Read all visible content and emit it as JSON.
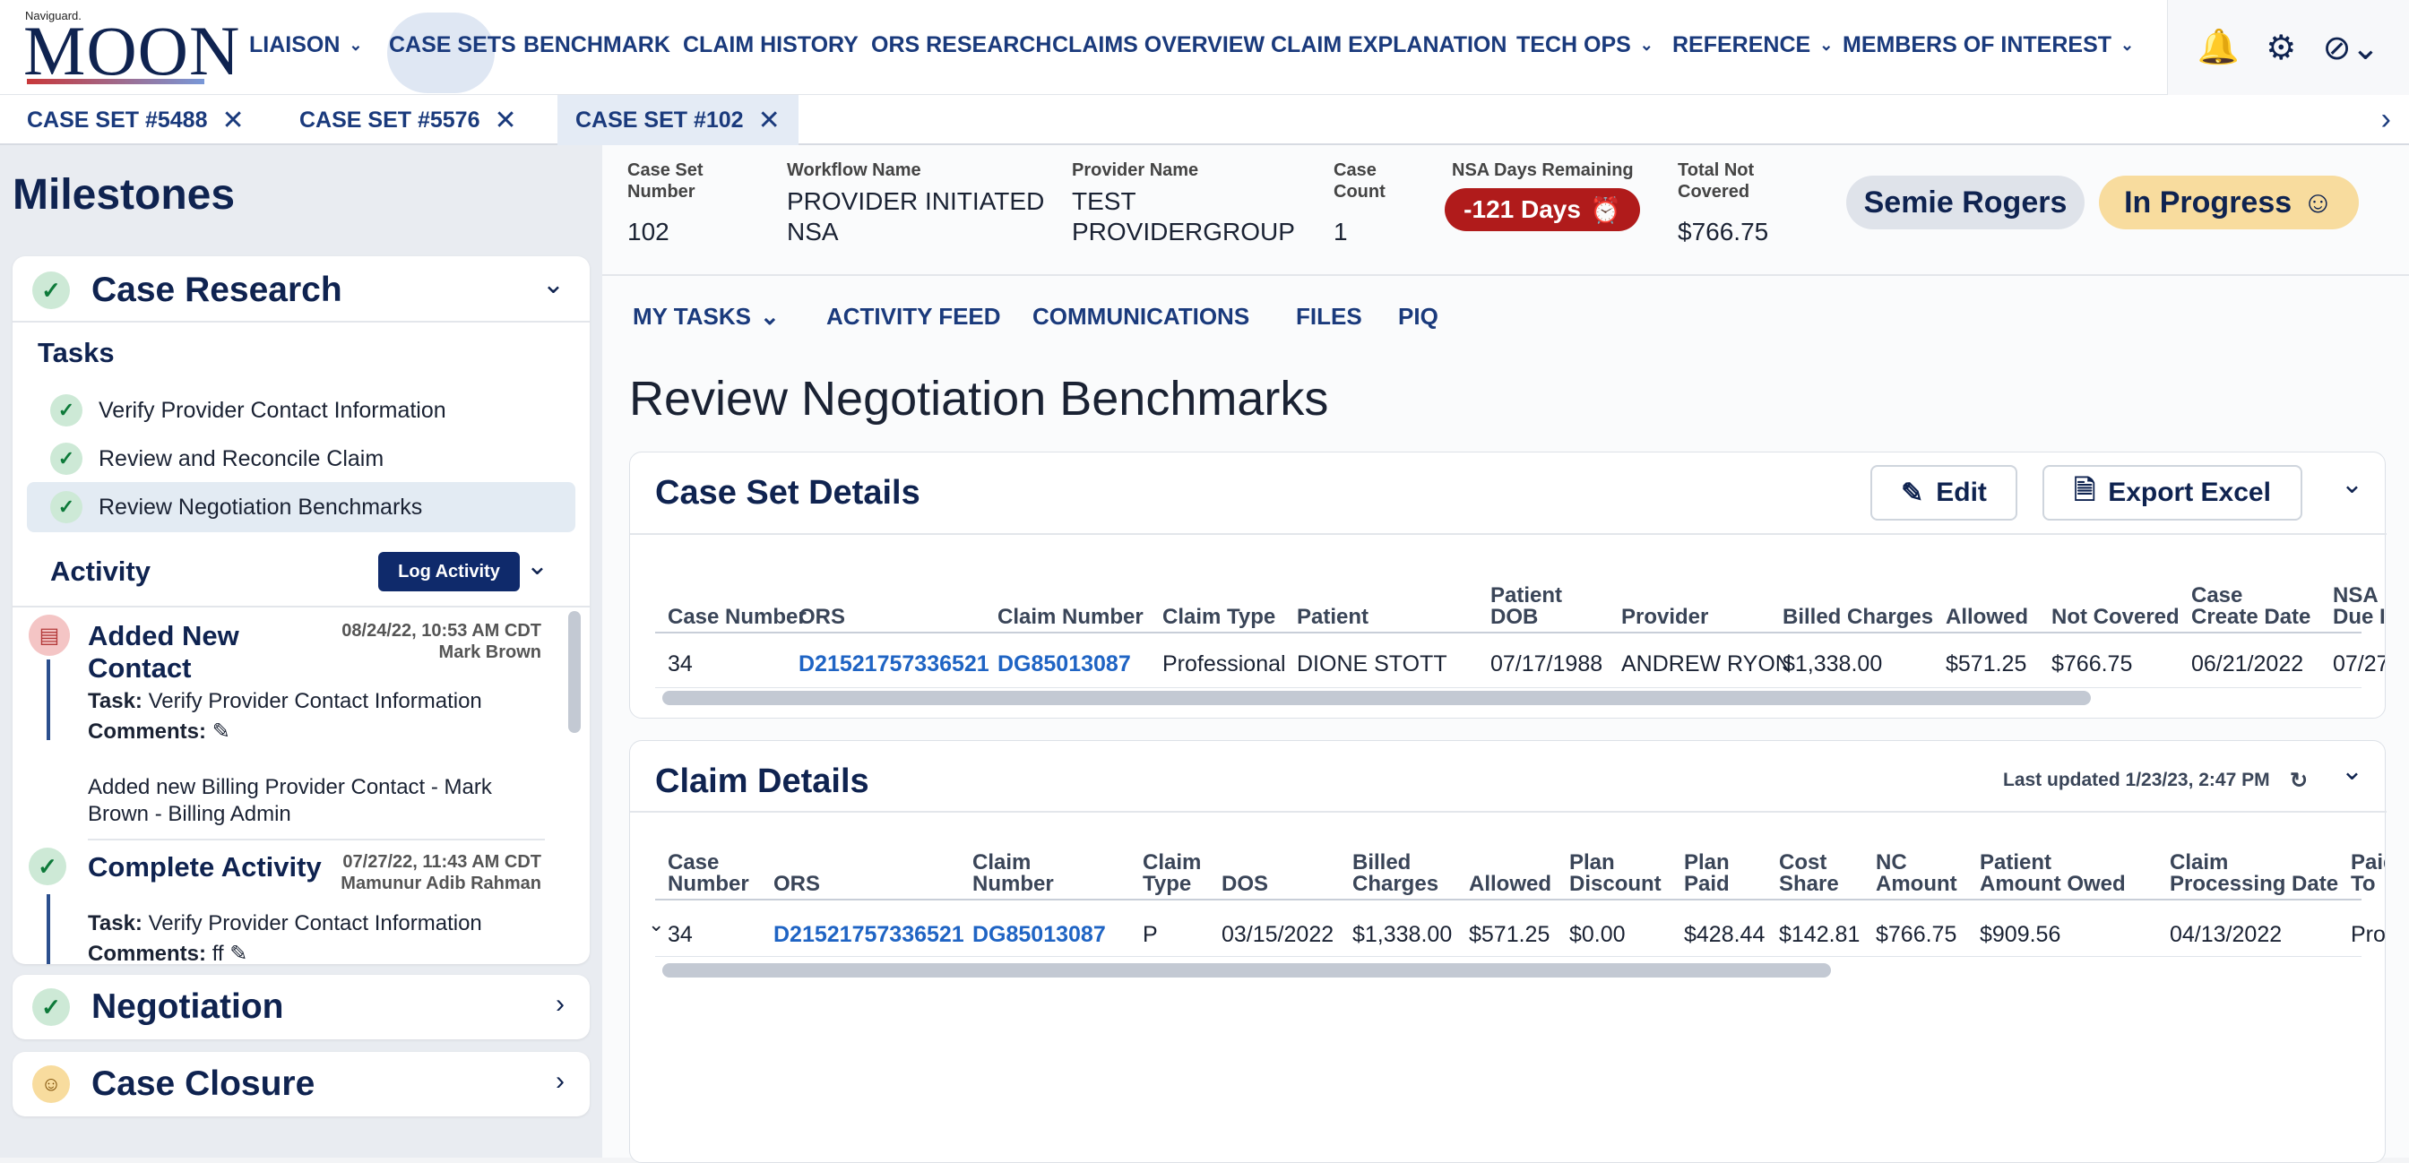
{
  "brand": {
    "small": "Naviguard.",
    "big": "MOON"
  },
  "nav": [
    {
      "label": "LIAISON",
      "chevron": true
    },
    {
      "label": "CASE SETS",
      "chevron": false,
      "active": true
    },
    {
      "label": "BENCHMARK",
      "chevron": false
    },
    {
      "label": "CLAIM HISTORY",
      "chevron": false
    },
    {
      "label": "ORS RESEARCH",
      "chevron": false
    },
    {
      "label": "CLAIMS OVERVIEW",
      "chevron": false
    },
    {
      "label": "CLAIM EXPLANATION",
      "chevron": false
    },
    {
      "label": "TECH OPS",
      "chevron": true
    },
    {
      "label": "REFERENCE",
      "chevron": true
    },
    {
      "label": "MEMBERS OF INTEREST",
      "chevron": true
    }
  ],
  "top_icons": [
    "bell-icon",
    "bug-icon",
    "user-blocked-icon"
  ],
  "doc_tabs": [
    {
      "label": "CASE SET #5488"
    },
    {
      "label": "CASE SET #5576"
    },
    {
      "label": "CASE SET #102",
      "active": true
    }
  ],
  "milestones": {
    "title": "Milestones",
    "case_research": {
      "title": "Case Research",
      "tasks_label": "Tasks",
      "tasks": [
        "Verify Provider Contact Information",
        "Review and Reconcile Claim",
        "Review Negotiation Benchmarks"
      ],
      "activity_label": "Activity",
      "log_button": "Log Activity",
      "activities": [
        {
          "title_1": "Added New",
          "title_2": "Contact",
          "date": "08/24/22, 10:53 AM CDT",
          "author": "Mark Brown",
          "task_label": "Task:",
          "task": "Verify Provider Contact Information",
          "comments_label": "Comments:",
          "body_1": "Added new Billing Provider Contact - Mark",
          "body_2": "Brown - Billing Admin"
        },
        {
          "title_1": "Complete Activity",
          "date": "07/27/22, 11:43 AM CDT",
          "author": "Mamunur Adib Rahman",
          "task_label": "Task:",
          "task": "Verify Provider Contact Information",
          "comments_label": "Comments:",
          "comment": "ff"
        }
      ]
    },
    "negotiation": {
      "title": "Negotiation"
    },
    "case_closure": {
      "title": "Case Closure"
    }
  },
  "case_header": {
    "case_set_number_label_1": "Case Set",
    "case_set_number_label_2": "Number",
    "case_set_number": "102",
    "workflow_label": "Workflow Name",
    "workflow_1": "PROVIDER INITIATED",
    "workflow_2": "NSA",
    "provider_label": "Provider Name",
    "provider_1": "TEST",
    "provider_2": "PROVIDERGROUP",
    "case_count_label_1": "Case",
    "case_count_label_2": "Count",
    "case_count": "1",
    "nsa_label": "NSA Days Remaining",
    "nsa_value": "-121 Days",
    "total_label_1": "Total Not",
    "total_label_2": "Covered",
    "total_value": "$766.75",
    "assignee": "Semie Rogers",
    "status": "In Progress"
  },
  "subtabs": [
    {
      "label": "MY TASKS",
      "chevron": true
    },
    {
      "label": "ACTIVITY FEED"
    },
    {
      "label": "COMMUNICATIONS"
    },
    {
      "label": "FILES"
    },
    {
      "label": "PIQ"
    }
  ],
  "page_heading": "Review Negotiation Benchmarks",
  "case_set_details": {
    "title": "Case Set Details",
    "edit_label": "Edit",
    "export_label": "Export Excel",
    "headers": [
      [
        "Case Number"
      ],
      [
        "ORS"
      ],
      [
        "Claim Number"
      ],
      [
        "Claim Type"
      ],
      [
        "Patient"
      ],
      [
        "Patient",
        "DOB"
      ],
      [
        "Provider"
      ],
      [
        "Billed Charges"
      ],
      [
        "Allowed"
      ],
      [
        "Not Covered"
      ],
      [
        "Case",
        "Create Date"
      ],
      [
        "NSA",
        "Due I"
      ]
    ],
    "row": [
      "34",
      "D21521757336521",
      "DG85013087",
      "Professional",
      "DIONE STOTT",
      "07/17/1988",
      "ANDREW RYON",
      "$1,338.00",
      "$571.25",
      "$766.75",
      "06/21/2022",
      "07/27"
    ]
  },
  "claim_details": {
    "title": "Claim Details",
    "last_updated": "Last updated 1/23/23, 2:47 PM",
    "headers": [
      [
        "Case",
        "Number"
      ],
      [
        "ORS"
      ],
      [
        "Claim",
        "Number"
      ],
      [
        "Claim",
        "Type"
      ],
      [
        "DOS"
      ],
      [
        "Billed",
        "Charges"
      ],
      [
        "Allowed"
      ],
      [
        "Plan",
        "Discount"
      ],
      [
        "Plan",
        "Paid"
      ],
      [
        "Cost",
        "Share"
      ],
      [
        "NC",
        "Amount"
      ],
      [
        "Patient",
        "Amount Owed"
      ],
      [
        "Claim",
        "Processing Date"
      ],
      [
        "Paid",
        "To"
      ]
    ],
    "row": [
      "34",
      "D21521757336521",
      "DG85013087",
      "P",
      "03/15/2022",
      "$1,338.00",
      "$571.25",
      "$0.00",
      "$428.44",
      "$142.81",
      "$766.75",
      "$909.56",
      "04/13/2022",
      "Pro"
    ]
  },
  "colors": {
    "primary": "#0f2350",
    "link": "#1f64c4",
    "badge_red": "#b01b1b",
    "status_amber": "#f8dc9e",
    "assignee_gray": "#dfe3ea"
  }
}
